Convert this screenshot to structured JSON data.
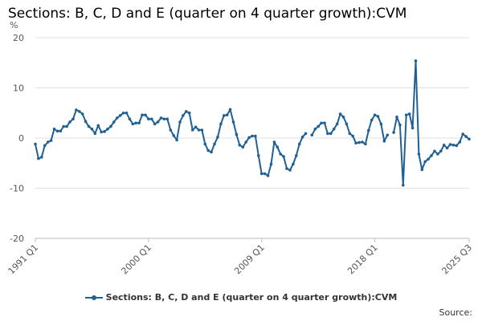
{
  "chart_data": {
    "type": "line",
    "title": "Sections: B, C, D and E (quarter on 4 quarter growth):CVM",
    "ylabel": "%",
    "ylim": [
      -20,
      20
    ],
    "yticks": [
      20,
      10,
      0,
      -10,
      -20
    ],
    "xtick_labels": [
      "1991 Q1",
      "2000 Q1",
      "2009 Q1",
      "2018 Q1",
      "2025 Q3"
    ],
    "start_quarter": "1991 Q1",
    "end_quarter": "2025 Q3",
    "grid": true,
    "legend_position": "bottom",
    "series": [
      {
        "name": "Sections: B, C, D and E (quarter on 4 quarter growth):CVM",
        "color": "#206095",
        "values": [
          -1.2,
          -4.1,
          -3.8,
          -1.5,
          -0.8,
          -0.5,
          1.8,
          1.4,
          1.4,
          2.3,
          2.3,
          3.2,
          3.8,
          5.6,
          5.3,
          4.8,
          3.3,
          2.3,
          1.8,
          0.9,
          2.5,
          1.2,
          1.3,
          1.8,
          2.3,
          3.2,
          4.0,
          4.5,
          5.0,
          5.0,
          3.8,
          2.8,
          3.0,
          3.0,
          4.6,
          4.6,
          3.8,
          3.8,
          2.8,
          3.2,
          4.0,
          3.8,
          3.8,
          1.6,
          0.5,
          -0.4,
          3.2,
          4.5,
          5.3,
          5.0,
          1.6,
          2.2,
          1.6,
          1.6,
          -1.2,
          -2.5,
          -2.8,
          -1.2,
          0.2,
          2.8,
          4.5,
          4.6,
          5.7,
          3.2,
          0.7,
          -1.4,
          -1.8,
          -0.8,
          0.1,
          0.4,
          0.4,
          -3.5,
          -7.1,
          -7.1,
          -7.5,
          -5.2,
          -0.8,
          -1.8,
          -3.2,
          -3.7,
          -6.1,
          -6.4,
          -5.2,
          -3.5,
          -1.2,
          0.2,
          0.9,
          null,
          0.6,
          1.8,
          2.3,
          3.0,
          3.0,
          0.9,
          0.9,
          1.8,
          2.8,
          4.8,
          4.2,
          2.8,
          0.9,
          0.4,
          -1.0,
          -0.9,
          -0.8,
          -1.2,
          1.5,
          3.6,
          4.6,
          4.3,
          2.8,
          -0.6,
          0.6,
          null,
          1.1,
          4.2,
          2.6,
          -9.4,
          4.6,
          4.8,
          2.0,
          15.4,
          -3.2,
          -6.3,
          -4.7,
          -4.2,
          -3.5,
          -2.6,
          -3.2,
          -2.6,
          -1.4,
          -2.0,
          -1.3,
          -1.4,
          -1.5,
          -0.8,
          0.8,
          0.3,
          -0.2
        ]
      }
    ]
  },
  "footer": {
    "source_label": "Source:"
  }
}
